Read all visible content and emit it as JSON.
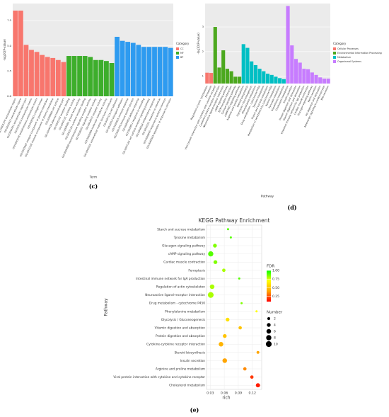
{
  "chart_data": [
    {
      "type": "bar",
      "panel_label": "(c)",
      "ylabel": "-log10(P-value)",
      "xlabel": "Term",
      "legend_title": "Category",
      "grid": true,
      "ylim": [
        0,
        9.2
      ],
      "yticks": [
        {
          "value": 0,
          "label": "0.0"
        },
        {
          "value": 2.5,
          "label": "2.5"
        },
        {
          "value": 5,
          "label": "5.0"
        },
        {
          "value": 7.5,
          "label": "7.5"
        }
      ],
      "series": [
        {
          "name": "CC",
          "color": "#F8766D",
          "categories": [
            "GO:0005576 extracellular region",
            "GO:0005615 extracellular space",
            "GO:0044421 extracellular region part",
            "GO:0031012 extracellular matrix",
            "GO:0005578 proteinaceous extracellular matrix",
            "GO:0005581 collagen trimer",
            "GO:0005887 integral component of plasma membrane",
            "GO:0031226 intrinsic component of plasma membrane",
            "GO:0009986 cell surface",
            "GO:0044459 plasma membrane part"
          ],
          "values": [
            8.5,
            8.5,
            5.1,
            4.6,
            4.4,
            4.1,
            3.9,
            3.8,
            3.6,
            3.4
          ]
        },
        {
          "name": "MF",
          "color": "#3DAE2B",
          "categories": [
            "GO:0005102 receptor binding",
            "GO:0005125 cytokine activity",
            "GO:0008083 growth factor activity",
            "GO:0005126 cytokine receptor binding",
            "GO:0004888 transmembrane signaling receptor activity",
            "GO:0038023 signaling receptor activity",
            "GO:0004872 receptor activity",
            "GO:0060089 molecular transducer activity",
            "GO:0005201 extracellular matrix structural constituent"
          ],
          "values": [
            4.0,
            4.0,
            4.0,
            4.0,
            3.9,
            3.6,
            3.6,
            3.5,
            3.3
          ]
        },
        {
          "name": "BP",
          "color": "#2E9BF0",
          "categories": [
            "GO:0007155 cell adhesion",
            "GO:0022610 biological adhesion",
            "GO:0006955 immune response",
            "GO:0002376 immune system process",
            "GO:0006952 defense response",
            "GO:0009611 response to wounding",
            "GO:0007166 cell surface receptor signaling pathway",
            "GO:0006954 inflammatory response",
            "GO:0042221 response to chemical",
            "GO:0009605 response to external stimulus",
            "GO:0048583 regulation of response to stimulus"
          ],
          "values": [
            5.9,
            5.5,
            5.4,
            5.3,
            5.1,
            4.9,
            4.9,
            4.9,
            4.9,
            4.9,
            4.8
          ]
        }
      ]
    },
    {
      "type": "bar",
      "panel_label": "(d)",
      "ylabel": "-log10(P-value)",
      "xlabel": "Pathway",
      "legend_title": "Category",
      "grid": true,
      "ylim": [
        0.7,
        3.95
      ],
      "yticks": [
        1,
        2,
        3
      ],
      "series": [
        {
          "name": "Cellular Processes",
          "color": "#F8766D",
          "categories": [
            "Regulation of actin cytoskeleton",
            "Ferroptosis"
          ],
          "values": [
            1.14,
            1.13
          ]
        },
        {
          "name": "Environmental Information Processing",
          "color": "#4CA81E",
          "categories": [
            "Viral protein interaction with cytokine and cytokine receptor",
            "Cytokine-cytokine receptor interaction",
            "Neuroactive ligand-receptor interaction",
            "cAMP signaling pathway",
            "ECM-receptor interaction",
            "Calcium signaling pathway",
            "cGMP-PKG signaling pathway"
          ],
          "values": [
            3.0,
            1.35,
            2.05,
            1.3,
            1.2,
            0.98,
            0.98
          ]
        },
        {
          "name": "Metabolism",
          "color": "#00BFC4",
          "categories": [
            "Arginine and proline metabolism",
            "Steroid biosynthesis",
            "Glycolysis / Gluconeogenesis",
            "Phenylalanine metabolism",
            "Drug metabolism - cytochrome P450",
            "Tyrosine metabolism",
            "Starch and sucrose metabolism",
            "Metabolism of xenobiotics by cytochrome P450",
            "Retinol metabolism",
            "Pyruvate metabolism",
            "Glutathione metabolism"
          ],
          "values": [
            2.3,
            2.15,
            1.6,
            1.45,
            1.3,
            1.2,
            1.1,
            1.05,
            0.98,
            0.92,
            0.88
          ]
        },
        {
          "name": "Organismal Systems",
          "color": "#C77CFF",
          "categories": [
            "Cholesterol metabolism",
            "Insulin secretion",
            "Protein digestion and absorption",
            "Vitamin digestion and absorption",
            "Intestinal immune network for IgA production",
            "Cardiac muscle contraction",
            "Glucagon signaling pathway",
            "Renin secretion",
            "Fat digestion and absorption",
            "Adrenergic signaling in cardiomyocytes",
            "Bile secretion"
          ],
          "values": [
            3.85,
            2.25,
            1.7,
            1.55,
            1.3,
            1.28,
            1.15,
            1.05,
            0.95,
            0.9,
            0.9
          ]
        }
      ]
    },
    {
      "type": "bubble",
      "panel_label": "(e)",
      "title": "KEGG Pathway Enrichment",
      "ylabel": "Pathway",
      "xlabel": "rich",
      "grid": true,
      "categories": [
        "Starch and sucrose metabolism",
        "Tyrosine metabolism",
        "Glucagon signaling pathway",
        "cAMP signaling pathway",
        "Cardiac muscle contraction",
        "Ferroptosis",
        "Intestinal immune network for IgA production",
        "Regulation of actin cytoskeleton",
        "Neuroactive ligand-receptor interaction",
        "Drug metabolism - cytochrome P450",
        "Phenylalanine metabolism",
        "Glycolysis / Gluconeogenesis",
        "Vitamin digestion and absorption",
        "Protein digestion and absorption",
        "Cytokine-cytokine receptor interaction",
        "Steroid biosynthesis",
        "Insulin secretion",
        "Arginine and proline metabolism",
        "Viral protein interaction with cytokine and cytokine receptor",
        "Cholesterol metabolism"
      ],
      "x": [
        0.068,
        0.074,
        0.04,
        0.031,
        0.041,
        0.059,
        0.092,
        0.034,
        0.031,
        0.097,
        0.129,
        0.067,
        0.094,
        0.061,
        0.053,
        0.132,
        0.061,
        0.104,
        0.119,
        0.132
      ],
      "sizes": [
        1,
        1,
        4,
        8,
        4,
        3,
        1,
        6,
        10,
        1,
        1,
        4,
        3,
        4,
        6,
        2,
        6,
        3,
        3,
        5
      ],
      "fdr": [
        0.9,
        0.9,
        0.85,
        0.9,
        0.85,
        0.8,
        0.9,
        0.8,
        0.8,
        0.85,
        0.7,
        0.6,
        0.5,
        0.5,
        0.45,
        0.4,
        0.4,
        0.35,
        0.2,
        0.15
      ],
      "xlim": [
        0.022,
        0.14
      ],
      "xticks": [
        0.03,
        0.06,
        0.09,
        0.12
      ],
      "color_title": "FDR",
      "color_lim": [
        0.1,
        1.0
      ],
      "colors": [
        "#ff0000",
        "#ffa500",
        "#ffff00",
        "#00ff00"
      ],
      "color_ticks": [
        0.25,
        {
          "value": 0.5,
          "label": "0.50"
        },
        0.75,
        {
          "value": 1,
          "label": "1.00"
        }
      ],
      "size_title": "Number",
      "size_ticks": [
        2,
        4,
        6,
        8,
        10
      ]
    }
  ]
}
